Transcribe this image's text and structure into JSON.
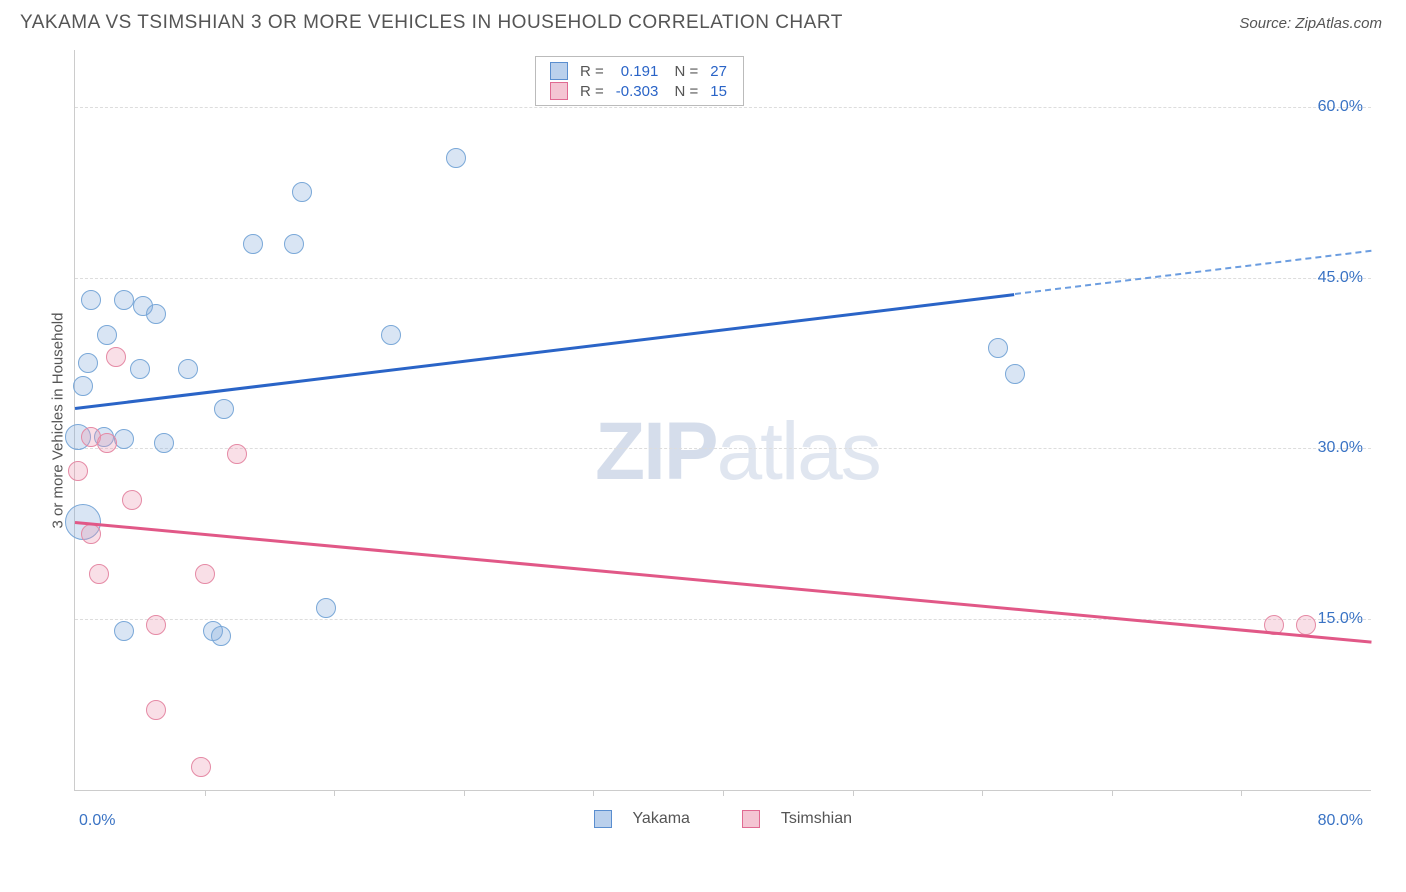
{
  "header": {
    "title": "YAKAMA VS TSIMSHIAN 3 OR MORE VEHICLES IN HOUSEHOLD CORRELATION CHART",
    "source_prefix": "Source: ",
    "source_name": "ZipAtlas.com"
  },
  "chart": {
    "type": "scatter-with-regression",
    "ylabel": "3 or more Vehicles in Household",
    "xlim": [
      0,
      80
    ],
    "ylim": [
      0,
      65
    ],
    "xtick_labels": [
      "0.0%",
      "80.0%"
    ],
    "ytick_positions": [
      15,
      30,
      45,
      60
    ],
    "ytick_labels": [
      "15.0%",
      "30.0%",
      "45.0%",
      "60.0%"
    ],
    "xtick_minor_step": 8,
    "background_color": "#ffffff",
    "grid_color": "#dddddd",
    "axis_color": "#cccccc",
    "tick_label_color": "#3a73c4",
    "dot_radius": 10,
    "watermark": {
      "bold": "ZIP",
      "rest": "atlas"
    },
    "series": [
      {
        "name": "Yakama",
        "fill": "rgba(130,170,220,0.30)",
        "stroke": "#7aa8d8",
        "line_color": "#2a64c7",
        "R": "0.191",
        "N": "27",
        "trend": {
          "x1": 0,
          "y1": 33.5,
          "x2": 58,
          "y2": 43.5,
          "x3": 80,
          "y3": 47.3,
          "dash_from": 58
        },
        "points": [
          {
            "x": 1.0,
            "y": 43.0
          },
          {
            "x": 3.0,
            "y": 43.0
          },
          {
            "x": 4.2,
            "y": 42.5
          },
          {
            "x": 5.0,
            "y": 41.8
          },
          {
            "x": 2.0,
            "y": 40.0
          },
          {
            "x": 0.8,
            "y": 37.5
          },
          {
            "x": 4.0,
            "y": 37.0
          },
          {
            "x": 7.0,
            "y": 37.0
          },
          {
            "x": 0.5,
            "y": 35.5
          },
          {
            "x": 9.2,
            "y": 33.5
          },
          {
            "x": 0.2,
            "y": 31.0,
            "r": 13
          },
          {
            "x": 1.8,
            "y": 31.0
          },
          {
            "x": 3.0,
            "y": 30.8
          },
          {
            "x": 5.5,
            "y": 30.5
          },
          {
            "x": 0.5,
            "y": 23.5,
            "r": 18
          },
          {
            "x": 11.0,
            "y": 48.0
          },
          {
            "x": 13.5,
            "y": 48.0
          },
          {
            "x": 14.0,
            "y": 52.5
          },
          {
            "x": 23.5,
            "y": 55.5
          },
          {
            "x": 19.5,
            "y": 40.0
          },
          {
            "x": 15.5,
            "y": 16.0
          },
          {
            "x": 3.0,
            "y": 14.0
          },
          {
            "x": 8.5,
            "y": 14.0
          },
          {
            "x": 9.0,
            "y": 13.5
          },
          {
            "x": 57.0,
            "y": 38.8
          },
          {
            "x": 58.0,
            "y": 36.5
          }
        ]
      },
      {
        "name": "Tsimshian",
        "fill": "rgba(235,150,175,0.30)",
        "stroke": "#e58aa5",
        "line_color": "#e15887",
        "R": "-0.303",
        "N": "15",
        "trend": {
          "x1": 0,
          "y1": 23.5,
          "x2": 80,
          "y2": 13.0
        },
        "points": [
          {
            "x": 2.5,
            "y": 38.0
          },
          {
            "x": 1.0,
            "y": 31.0
          },
          {
            "x": 2.0,
            "y": 30.5
          },
          {
            "x": 0.2,
            "y": 28.0
          },
          {
            "x": 10.0,
            "y": 29.5
          },
          {
            "x": 3.5,
            "y": 25.5
          },
          {
            "x": 1.0,
            "y": 22.5
          },
          {
            "x": 1.5,
            "y": 19.0
          },
          {
            "x": 8.0,
            "y": 19.0
          },
          {
            "x": 5.0,
            "y": 14.5
          },
          {
            "x": 5.0,
            "y": 7.0
          },
          {
            "x": 7.8,
            "y": 2.0
          },
          {
            "x": 74.0,
            "y": 14.5
          },
          {
            "x": 76.0,
            "y": 14.5
          }
        ]
      }
    ],
    "legend_bottom": [
      {
        "swatch": "sw-blue",
        "label": "Yakama"
      },
      {
        "swatch": "sw-pink",
        "label": "Tsimshian"
      }
    ]
  }
}
